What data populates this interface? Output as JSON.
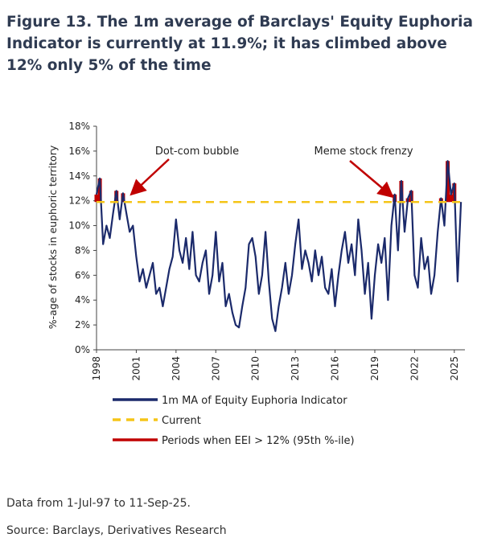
{
  "chart_data": {
    "type": "line",
    "title": "Figure 13. The 1m average of Barclays' Equity Euphoria Indicator is currently at 11.9%; it has climbed above 12% only 5% of the time",
    "y_label": "%-age of stocks in euphoric territory",
    "annotations": [
      "Dot-com bubble",
      "Meme stock frenzy"
    ],
    "notes": [
      "Data from 1-Jul-97 to 11-Sep-25.",
      "Source: Barclays, Derivatives Research"
    ],
    "x": [
      1998,
      1998.25,
      1998.5,
      1998.75,
      1999,
      1999.25,
      1999.5,
      1999.75,
      2000,
      2000.25,
      2000.5,
      2000.75,
      2001,
      2001.25,
      2001.5,
      2001.75,
      2002,
      2002.25,
      2002.5,
      2002.75,
      2003,
      2003.25,
      2003.5,
      2003.75,
      2004,
      2004.25,
      2004.5,
      2004.75,
      2005,
      2005.25,
      2005.5,
      2005.75,
      2006,
      2006.25,
      2006.5,
      2006.75,
      2007,
      2007.25,
      2007.5,
      2007.75,
      2008,
      2008.25,
      2008.5,
      2008.75,
      2009,
      2009.25,
      2009.5,
      2009.75,
      2010,
      2010.25,
      2010.5,
      2010.75,
      2011,
      2011.25,
      2011.5,
      2011.75,
      2012,
      2012.25,
      2012.5,
      2012.75,
      2013,
      2013.25,
      2013.5,
      2013.75,
      2014,
      2014.25,
      2014.5,
      2014.75,
      2015,
      2015.25,
      2015.5,
      2015.75,
      2016,
      2016.25,
      2016.5,
      2016.75,
      2017,
      2017.25,
      2017.5,
      2017.75,
      2018,
      2018.25,
      2018.5,
      2018.75,
      2019,
      2019.25,
      2019.5,
      2019.75,
      2020,
      2020.25,
      2020.5,
      2020.75,
      2021,
      2021.25,
      2021.5,
      2021.75,
      2022,
      2022.25,
      2022.5,
      2022.75,
      2023,
      2023.25,
      2023.5,
      2023.75,
      2024,
      2024.25,
      2024.5,
      2024.75,
      2025,
      2025.25,
      2025.5
    ],
    "series": [
      {
        "name": "1m MA of Equity Euphoria Indicator",
        "color": "#1b2a6b",
        "values": [
          12.5,
          13.8,
          8.5,
          10,
          9,
          11,
          12.8,
          10.5,
          12.6,
          11,
          9.5,
          10,
          7.5,
          5.5,
          6.5,
          5,
          6,
          7,
          4.5,
          5,
          3.5,
          5,
          6.5,
          7.5,
          10.5,
          8,
          7,
          9,
          6.5,
          9.5,
          6,
          5.5,
          7,
          8,
          4.5,
          6,
          9.5,
          5.5,
          7,
          3.5,
          4.5,
          3,
          2,
          1.8,
          3.5,
          5,
          8.5,
          9,
          7.5,
          4.5,
          6,
          9.5,
          5.5,
          2.5,
          1.5,
          3.5,
          5,
          7,
          4.5,
          6,
          8.5,
          10.5,
          6.5,
          8,
          7,
          5.5,
          8,
          6,
          7.5,
          5,
          4.5,
          6.5,
          3.5,
          6,
          8,
          9.5,
          7,
          8.5,
          6,
          10.5,
          8,
          4.5,
          7,
          2.5,
          6,
          8.5,
          7,
          9,
          4,
          10,
          12.5,
          8,
          13.6,
          9.5,
          12.2,
          12.8,
          6,
          5,
          9,
          6.5,
          7.5,
          4.5,
          6,
          9.5,
          12.2,
          10,
          15.2,
          12.5,
          13.4,
          5.5,
          11.9
        ]
      },
      {
        "name": "Periods when EEI > 12% (95th %-ile)",
        "color": "#c00000",
        "values": [
          12.5,
          13.8,
          null,
          null,
          null,
          null,
          12.8,
          null,
          12.6,
          null,
          null,
          null,
          null,
          null,
          null,
          null,
          null,
          null,
          null,
          null,
          null,
          null,
          null,
          null,
          null,
          null,
          null,
          null,
          null,
          null,
          null,
          null,
          null,
          null,
          null,
          null,
          null,
          null,
          null,
          null,
          null,
          null,
          null,
          null,
          null,
          null,
          null,
          null,
          null,
          null,
          null,
          null,
          null,
          null,
          null,
          null,
          null,
          null,
          null,
          null,
          null,
          null,
          null,
          null,
          null,
          null,
          null,
          null,
          null,
          null,
          null,
          null,
          null,
          null,
          null,
          null,
          null,
          null,
          null,
          null,
          null,
          null,
          null,
          null,
          null,
          null,
          null,
          null,
          null,
          null,
          12.5,
          null,
          13.6,
          null,
          12.2,
          12.8,
          null,
          null,
          null,
          null,
          null,
          null,
          null,
          null,
          12.2,
          null,
          15.2,
          12.5,
          13.4,
          null,
          null
        ]
      }
    ],
    "reference_line": {
      "name": "Current",
      "value": 11.9,
      "color": "#f5c518"
    },
    "xlim": [
      1998,
      2025.8
    ],
    "xticks": [
      1998,
      2001,
      2004,
      2007,
      2010,
      2013,
      2016,
      2019,
      2022,
      2025
    ],
    "ylim": [
      0,
      18
    ],
    "yticks": [
      {
        "value": 0,
        "label": "0%"
      },
      {
        "value": 2,
        "label": "2%"
      },
      {
        "value": 4,
        "label": "4%"
      },
      {
        "value": 6,
        "label": "6%"
      },
      {
        "value": 8,
        "label": "8%"
      },
      {
        "value": 10,
        "label": "10%"
      },
      {
        "value": 12,
        "label": "12%"
      },
      {
        "value": 14,
        "label": "14%"
      },
      {
        "value": 16,
        "label": "16%"
      },
      {
        "value": 18,
        "label": "18%"
      }
    ]
  }
}
